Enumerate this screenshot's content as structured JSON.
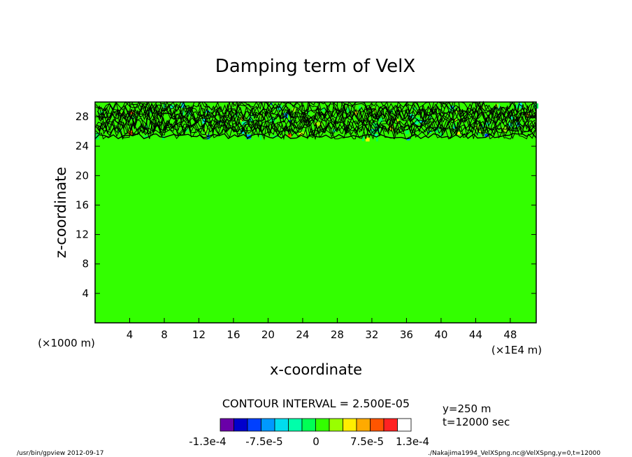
{
  "chart_data": {
    "type": "heatmap",
    "title": "Damping term of VelX",
    "xlabel": "x-coordinate",
    "ylabel": "z-coordinate",
    "x_unit_left": "(×1000 m)",
    "x_unit_right": "(×1E4 m)",
    "x_ticks": [
      4,
      8,
      12,
      16,
      20,
      24,
      28,
      32,
      36,
      40,
      44,
      48
    ],
    "y_ticks": [
      4,
      8,
      12,
      16,
      20,
      24,
      28
    ],
    "xlim": [
      0,
      51
    ],
    "ylim": [
      0,
      30
    ],
    "sponge_layer_bottom": 25,
    "background_value": 0,
    "contour_interval_text": "CONTOUR INTERVAL = 2.500E-05",
    "info_lines": [
      "y=250  m",
      "t=12000 sec"
    ],
    "colorbar": {
      "colors": [
        "#6a00a8",
        "#0000cc",
        "#0040ff",
        "#0099ff",
        "#00ddee",
        "#00ffaa",
        "#00ff55",
        "#33ff00",
        "#99ff00",
        "#ffee00",
        "#ffaa00",
        "#ff5500",
        "#ff2222",
        "#ffffff"
      ],
      "labels": [
        "-1.3e-4",
        "-7.5e-5",
        "0",
        "7.5e-5",
        "1.3e-4"
      ]
    }
  },
  "footer": {
    "left": "/usr/bin/gpview   2012-09-17",
    "right": "./Nakajima1994_VelXSpng.nc@VelXSpng,y=0,t=12000"
  }
}
